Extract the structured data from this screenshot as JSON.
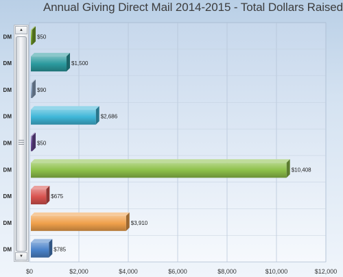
{
  "chart_data": {
    "type": "bar",
    "orientation": "horizontal",
    "title": "Annual Giving Direct Mail 2014-2015 - Total Dollars Raised",
    "categories": [
      "DM",
      "DM",
      "DM",
      "DM",
      "DM",
      "DM",
      "DM",
      "DM",
      "DM"
    ],
    "values": [
      50,
      1500,
      90,
      2686,
      50,
      10408,
      675,
      3910,
      785
    ],
    "value_labels": [
      "$50",
      "$1,500",
      "$90",
      "$2,686",
      "$50",
      "$10,408",
      "$675",
      "$3,910",
      "$785"
    ],
    "colors": [
      "#7aa82e",
      "#2b9a9e",
      "#8fa6c4",
      "#3fb6d8",
      "#6b4c9a",
      "#8dc049",
      "#d9534f",
      "#f0a04b",
      "#4a82c9"
    ],
    "xlim": [
      0,
      12000
    ],
    "xticks": [
      0,
      2000,
      4000,
      6000,
      8000,
      10000,
      12000
    ],
    "xtick_labels": [
      "$0",
      "$2,000",
      "$4,000",
      "$6,000",
      "$8,000",
      "$10,000",
      "$12,000"
    ],
    "xlabel": "",
    "ylabel": "",
    "grid": true
  },
  "scrollbar": {
    "up_icon": "▲",
    "down_icon": "▼"
  }
}
